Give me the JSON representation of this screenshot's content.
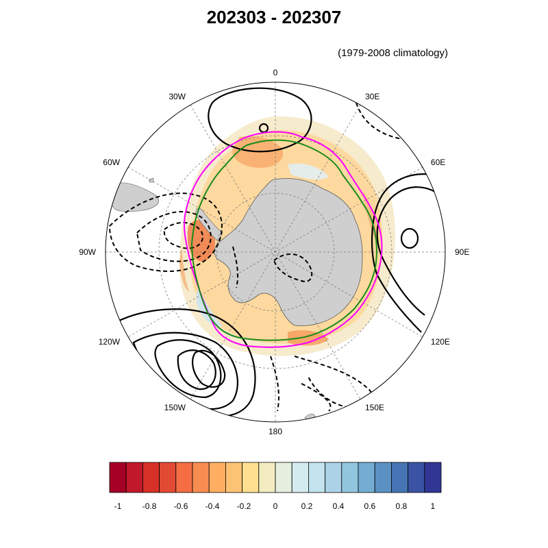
{
  "title": "202303 - 202307",
  "subtitle": "(1979-2008 climatology)",
  "map": {
    "projection": "south polar stereographic",
    "longitude_labels": [
      {
        "text": "0",
        "lon": 0
      },
      {
        "text": "30E",
        "lon": 30
      },
      {
        "text": "60E",
        "lon": 60
      },
      {
        "text": "90E",
        "lon": 90
      },
      {
        "text": "120E",
        "lon": 120
      },
      {
        "text": "150E",
        "lon": 150
      },
      {
        "text": "180",
        "lon": 180
      },
      {
        "text": "150W",
        "lon": 210
      },
      {
        "text": "120W",
        "lon": 240
      },
      {
        "text": "90W",
        "lon": 270
      },
      {
        "text": "60W",
        "lon": 300
      },
      {
        "text": "30W",
        "lon": 330
      }
    ],
    "colors": {
      "land": "#cfcfcf",
      "grid": "#777777",
      "contour": "#000000",
      "ice_edge_current": "#ff00ff",
      "ice_edge_climatology": "#1a8a1a"
    }
  },
  "colorbar": {
    "levels": [
      -1,
      -0.9,
      -0.8,
      -0.7,
      -0.6,
      -0.5,
      -0.4,
      -0.3,
      -0.2,
      -0.1,
      0,
      0.1,
      0.2,
      0.3,
      0.4,
      0.5,
      0.6,
      0.7,
      0.8,
      0.9,
      1
    ],
    "tick_labels": [
      "-1",
      "-0.8",
      "-0.6",
      "-0.4",
      "-0.2",
      "0",
      "0.2",
      "0.4",
      "0.6",
      "0.8",
      "1"
    ],
    "colors": [
      "#a50026",
      "#c1182a",
      "#d73027",
      "#e34a33",
      "#f46d43",
      "#f88d52",
      "#fdae61",
      "#fdc374",
      "#fee090",
      "#f2ecc0",
      "#e6efdf",
      "#d4ebf0",
      "#c3e3ee",
      "#abd2e6",
      "#92c5de",
      "#74add1",
      "#5b91c2",
      "#4575b4",
      "#3a53a4",
      "#313695"
    ]
  }
}
